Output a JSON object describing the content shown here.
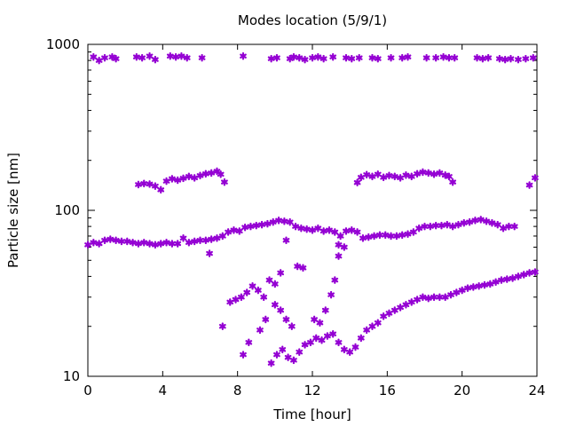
{
  "chart_data": {
    "type": "scatter",
    "title": "Modes location (5/9/1)",
    "xlabel": "Time [hour]",
    "ylabel": "Particle size [nm]",
    "xlim": [
      0,
      24
    ],
    "ylim": [
      10,
      1000
    ],
    "yscale": "log",
    "grid": false,
    "legend": "none",
    "x_ticks": [
      0,
      4,
      8,
      12,
      16,
      20,
      24
    ],
    "y_ticks": [
      10,
      100,
      1000
    ],
    "marker": "star",
    "color": "#9400d3",
    "series": [
      {
        "points": [
          [
            0.3,
            840
          ],
          [
            0.6,
            800
          ],
          [
            0.9,
            830
          ],
          [
            1.3,
            840
          ],
          [
            1.5,
            820
          ],
          [
            2.6,
            840
          ],
          [
            2.9,
            830
          ],
          [
            3.3,
            850
          ],
          [
            3.6,
            810
          ],
          [
            4.4,
            850
          ],
          [
            4.7,
            840
          ],
          [
            5.0,
            850
          ],
          [
            5.3,
            830
          ],
          [
            6.1,
            830
          ],
          [
            8.3,
            850
          ],
          [
            9.8,
            820
          ],
          [
            10.1,
            830
          ],
          [
            10.8,
            820
          ],
          [
            11.0,
            840
          ],
          [
            11.3,
            830
          ],
          [
            11.6,
            810
          ],
          [
            12.0,
            830
          ],
          [
            12.3,
            840
          ],
          [
            12.6,
            820
          ],
          [
            13.1,
            840
          ],
          [
            13.8,
            830
          ],
          [
            14.1,
            820
          ],
          [
            14.5,
            830
          ],
          [
            15.2,
            830
          ],
          [
            15.5,
            820
          ],
          [
            16.2,
            830
          ],
          [
            16.8,
            830
          ],
          [
            17.1,
            840
          ],
          [
            18.1,
            830
          ],
          [
            18.6,
            830
          ],
          [
            19.0,
            840
          ],
          [
            19.3,
            830
          ],
          [
            19.6,
            830
          ],
          [
            20.8,
            830
          ],
          [
            21.1,
            820
          ],
          [
            21.4,
            830
          ],
          [
            22.0,
            820
          ],
          [
            22.3,
            810
          ],
          [
            22.6,
            820
          ],
          [
            23.0,
            810
          ],
          [
            23.4,
            820
          ],
          [
            23.8,
            830
          ]
        ]
      },
      {
        "points": [
          [
            2.7,
            143
          ],
          [
            3.0,
            145
          ],
          [
            3.3,
            144
          ],
          [
            3.6,
            140
          ],
          [
            3.9,
            133
          ],
          [
            4.2,
            150
          ],
          [
            4.5,
            155
          ],
          [
            4.8,
            152
          ],
          [
            5.1,
            156
          ],
          [
            5.4,
            160
          ],
          [
            5.7,
            157
          ],
          [
            6.0,
            162
          ],
          [
            6.3,
            166
          ],
          [
            6.6,
            168
          ],
          [
            6.9,
            172
          ],
          [
            7.1,
            165
          ],
          [
            7.3,
            148
          ],
          [
            14.4,
            147
          ],
          [
            14.6,
            158
          ],
          [
            14.9,
            164
          ],
          [
            15.2,
            160
          ],
          [
            15.5,
            165
          ],
          [
            15.8,
            158
          ],
          [
            16.1,
            162
          ],
          [
            16.4,
            160
          ],
          [
            16.7,
            157
          ],
          [
            17.0,
            163
          ],
          [
            17.3,
            160
          ],
          [
            17.6,
            166
          ],
          [
            17.9,
            170
          ],
          [
            18.2,
            168
          ],
          [
            18.5,
            165
          ],
          [
            18.8,
            168
          ],
          [
            19.1,
            163
          ],
          [
            19.3,
            160
          ],
          [
            19.5,
            148
          ],
          [
            23.6,
            142
          ],
          [
            23.9,
            157
          ]
        ]
      },
      {
        "points": [
          [
            0.0,
            62
          ],
          [
            0.3,
            64
          ],
          [
            0.6,
            63
          ],
          [
            0.9,
            66
          ],
          [
            1.2,
            67
          ],
          [
            1.5,
            66
          ],
          [
            1.8,
            65
          ],
          [
            2.1,
            65
          ],
          [
            2.4,
            64
          ],
          [
            2.7,
            63
          ],
          [
            3.0,
            64
          ],
          [
            3.3,
            63
          ],
          [
            3.6,
            62
          ],
          [
            3.9,
            63
          ],
          [
            4.2,
            64
          ],
          [
            4.5,
            63
          ],
          [
            4.8,
            63
          ],
          [
            5.1,
            68
          ],
          [
            5.4,
            64
          ],
          [
            5.7,
            65
          ],
          [
            6.0,
            66
          ],
          [
            6.3,
            66
          ],
          [
            6.6,
            67
          ],
          [
            6.9,
            68
          ],
          [
            7.2,
            70
          ],
          [
            7.5,
            74
          ],
          [
            7.8,
            76
          ],
          [
            8.1,
            75
          ],
          [
            8.4,
            79
          ],
          [
            8.7,
            80
          ],
          [
            9.0,
            81
          ],
          [
            9.3,
            82
          ],
          [
            9.6,
            83
          ],
          [
            9.9,
            85
          ],
          [
            10.2,
            87
          ],
          [
            10.5,
            86
          ],
          [
            10.8,
            85
          ],
          [
            11.1,
            80
          ],
          [
            11.4,
            78
          ],
          [
            11.7,
            77
          ],
          [
            12.0,
            76
          ],
          [
            12.3,
            78
          ],
          [
            12.6,
            75
          ],
          [
            12.9,
            76
          ],
          [
            13.2,
            74
          ],
          [
            13.5,
            70
          ],
          [
            13.8,
            75
          ],
          [
            14.1,
            76
          ],
          [
            14.4,
            74
          ],
          [
            14.7,
            68
          ],
          [
            15.0,
            69
          ],
          [
            15.3,
            70
          ],
          [
            15.6,
            71
          ],
          [
            15.9,
            71
          ],
          [
            16.2,
            70
          ],
          [
            16.5,
            70
          ],
          [
            16.8,
            71
          ],
          [
            17.1,
            72
          ],
          [
            17.4,
            74
          ],
          [
            17.7,
            78
          ],
          [
            18.0,
            80
          ],
          [
            18.3,
            80
          ],
          [
            18.6,
            81
          ],
          [
            18.9,
            81
          ],
          [
            19.2,
            82
          ],
          [
            19.5,
            80
          ],
          [
            19.8,
            82
          ],
          [
            20.1,
            84
          ],
          [
            20.4,
            85
          ],
          [
            20.7,
            87
          ],
          [
            21.0,
            88
          ],
          [
            21.3,
            86
          ],
          [
            21.6,
            84
          ],
          [
            21.9,
            82
          ],
          [
            22.2,
            78
          ],
          [
            22.5,
            80
          ],
          [
            22.8,
            80
          ],
          [
            6.5,
            55
          ],
          [
            10.6,
            66
          ],
          [
            13.4,
            62
          ]
        ]
      },
      {
        "points": [
          [
            7.2,
            20
          ],
          [
            7.6,
            28
          ],
          [
            7.9,
            29
          ],
          [
            8.2,
            30
          ],
          [
            8.5,
            32
          ],
          [
            8.8,
            35
          ],
          [
            9.1,
            33
          ],
          [
            9.4,
            30
          ],
          [
            9.7,
            38
          ],
          [
            10.0,
            36
          ],
          [
            10.3,
            42
          ],
          [
            8.3,
            13.5
          ],
          [
            8.6,
            16
          ],
          [
            9.2,
            19
          ],
          [
            9.5,
            22
          ],
          [
            10.0,
            27
          ],
          [
            10.3,
            25
          ],
          [
            10.6,
            22
          ],
          [
            10.9,
            20
          ],
          [
            11.2,
            46
          ],
          [
            11.5,
            45
          ],
          [
            12.1,
            22
          ],
          [
            12.4,
            21
          ],
          [
            12.7,
            25
          ],
          [
            13.0,
            31
          ],
          [
            13.2,
            38
          ],
          [
            13.4,
            53
          ],
          [
            13.7,
            60
          ]
        ]
      },
      {
        "points": [
          [
            9.8,
            12
          ],
          [
            10.1,
            13.5
          ],
          [
            10.4,
            14.5
          ],
          [
            10.7,
            13
          ],
          [
            11.0,
            12.5
          ],
          [
            11.3,
            14
          ],
          [
            11.6,
            15.5
          ],
          [
            11.9,
            16
          ],
          [
            12.2,
            17
          ],
          [
            12.5,
            16.5
          ],
          [
            12.8,
            17.5
          ],
          [
            13.1,
            18
          ],
          [
            13.4,
            16
          ],
          [
            13.7,
            14.5
          ],
          [
            14.0,
            14
          ],
          [
            14.3,
            15
          ],
          [
            14.6,
            17
          ],
          [
            14.9,
            19
          ],
          [
            15.2,
            20
          ],
          [
            15.5,
            21
          ],
          [
            15.8,
            23
          ],
          [
            16.1,
            24
          ],
          [
            16.4,
            25
          ],
          [
            16.7,
            26
          ],
          [
            17.0,
            27
          ],
          [
            17.3,
            28
          ],
          [
            17.6,
            29
          ],
          [
            17.9,
            30
          ],
          [
            18.2,
            29.5
          ],
          [
            18.5,
            30
          ],
          [
            18.8,
            30
          ],
          [
            19.1,
            30
          ],
          [
            19.4,
            31
          ],
          [
            19.7,
            32
          ],
          [
            20.0,
            33
          ],
          [
            20.3,
            34
          ],
          [
            20.6,
            34.5
          ],
          [
            20.9,
            35
          ],
          [
            21.2,
            35.5
          ],
          [
            21.5,
            36
          ],
          [
            21.8,
            37
          ],
          [
            22.1,
            38
          ],
          [
            22.4,
            38.5
          ],
          [
            22.7,
            39
          ],
          [
            23.0,
            40
          ],
          [
            23.3,
            41
          ],
          [
            23.6,
            42
          ],
          [
            23.9,
            42.5
          ]
        ]
      }
    ]
  }
}
